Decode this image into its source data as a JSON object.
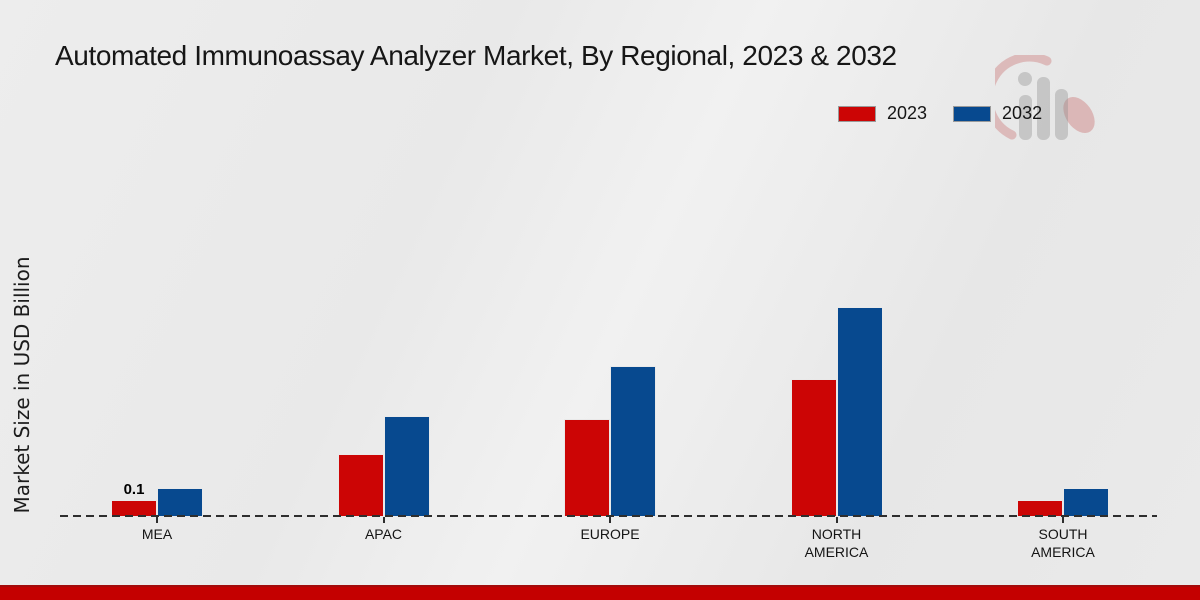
{
  "page": {
    "title": "Automated Immunoassay Analyzer Market, By Regional, 2023 & 2032"
  },
  "chart_data": {
    "type": "bar",
    "title": "Automated Immunoassay Analyzer Market, By Regional, 2023 & 2032",
    "xlabel": "",
    "ylabel": "Market Size in USD Billion",
    "categories": [
      "MEA",
      "APAC",
      "EUROPE",
      "NORTH AMERICA",
      "SOUTH AMERICA"
    ],
    "series": [
      {
        "name": "2023",
        "color": "#cc0505",
        "values": [
          0.1,
          0.4,
          0.62,
          0.88,
          0.1
        ]
      },
      {
        "name": "2032",
        "color": "#07498f",
        "values": [
          0.18,
          0.64,
          0.96,
          1.34,
          0.18
        ]
      }
    ],
    "data_labels": [
      {
        "category": "MEA",
        "series": "2023",
        "text": "0.1"
      }
    ],
    "ylim": [
      0,
      1.4
    ],
    "grid": false,
    "legend_position": "top-right",
    "baseline_style": "dashed",
    "axis_ticks_visible": false
  },
  "watermark": {
    "name": "market-research-future-logo"
  },
  "footer": {
    "color": "#c40000"
  }
}
